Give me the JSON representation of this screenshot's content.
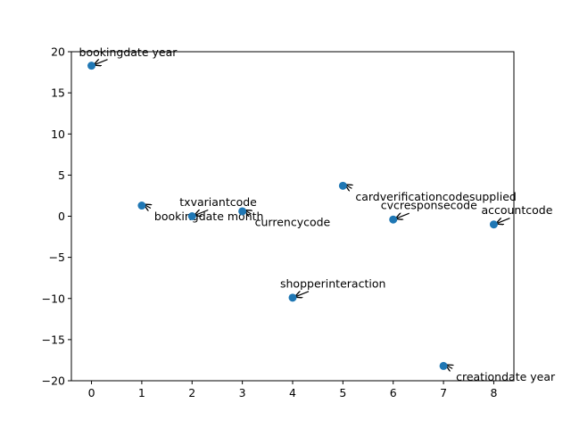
{
  "chart_data": {
    "type": "scatter",
    "title": "",
    "xlabel": "",
    "ylabel": "",
    "xlim": [
      -0.4,
      8.4
    ],
    "ylim": [
      -20,
      20
    ],
    "xticks": [
      0,
      1,
      2,
      3,
      4,
      5,
      6,
      7,
      8
    ],
    "yticks": [
      -20,
      -15,
      -10,
      -5,
      0,
      5,
      10,
      15,
      20
    ],
    "grid": false,
    "marker_color": "#1f77b4",
    "points": [
      {
        "x": 0,
        "y": 18.3,
        "label": "bookingdate year"
      },
      {
        "x": 1,
        "y": 1.3,
        "label": "bookingdate month"
      },
      {
        "x": 2,
        "y": 0.0,
        "label": "txvariantcode"
      },
      {
        "x": 3,
        "y": 0.6,
        "label": "currencycode"
      },
      {
        "x": 4,
        "y": -9.9,
        "label": "shopperinteraction"
      },
      {
        "x": 5,
        "y": 3.7,
        "label": "cardverificationcodesupplied"
      },
      {
        "x": 6,
        "y": -0.4,
        "label": "cvcresponsecode"
      },
      {
        "x": 7,
        "y": -18.2,
        "label": "creationdate year"
      },
      {
        "x": 8,
        "y": -1.0,
        "label": "accountcode"
      }
    ]
  }
}
